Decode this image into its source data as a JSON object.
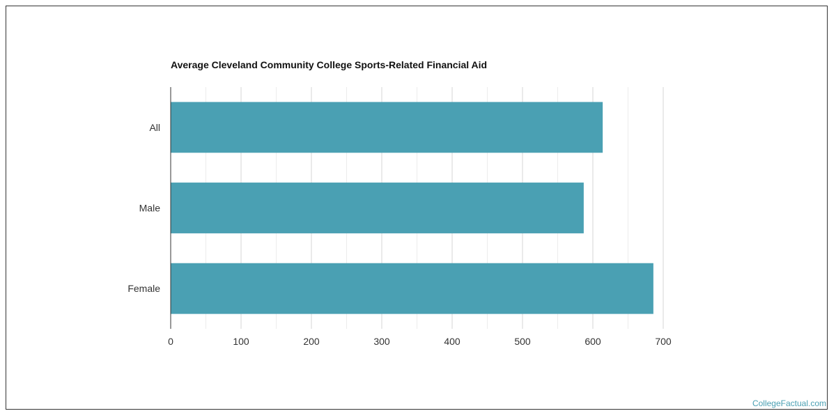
{
  "chart_data": {
    "type": "bar",
    "orientation": "horizontal",
    "title": "Average Cleveland Community College Sports-Related Financial Aid",
    "categories": [
      "All",
      "Male",
      "Female"
    ],
    "values": [
      614,
      587,
      686
    ],
    "xlim": [
      0,
      700
    ],
    "xticks": [
      0,
      100,
      200,
      300,
      400,
      500,
      600,
      700
    ],
    "xtick_labels": [
      "0",
      "100",
      "200",
      "300",
      "400",
      "500",
      "600",
      "700"
    ],
    "grid": true,
    "bar_color": "#4aa0b3"
  },
  "watermark": "CollegeFactual.com"
}
